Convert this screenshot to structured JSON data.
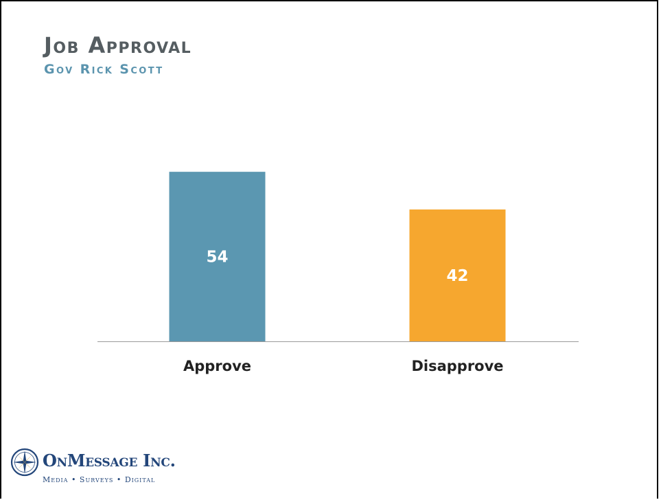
{
  "slide": {
    "title": "Job Approval",
    "subtitle": "Gov Rick Scott"
  },
  "logo": {
    "name": "OnMessage Inc.",
    "tagline": "Media • Surveys • Digital",
    "icon": "compass-rose-icon"
  },
  "colors": {
    "title": "#555d61",
    "subtitle": "#5b94ae",
    "approve": "#5b97b1",
    "disapprove": "#f6a72f",
    "axis": "#9a9a9a",
    "logo": "#23467a"
  },
  "chart_data": {
    "type": "bar",
    "title": "Job Approval",
    "subtitle": "Gov Rick Scott",
    "categories": [
      "Approve",
      "Disapprove"
    ],
    "values": [
      54,
      42
    ],
    "data_labels": [
      "54",
      "42"
    ],
    "bar_colors": [
      "#5b97b1",
      "#f6a72f"
    ],
    "xlabel": "",
    "ylabel": "",
    "ylim": [
      0,
      56
    ],
    "grid": false,
    "legend": "none",
    "y_axis_visible": false
  }
}
